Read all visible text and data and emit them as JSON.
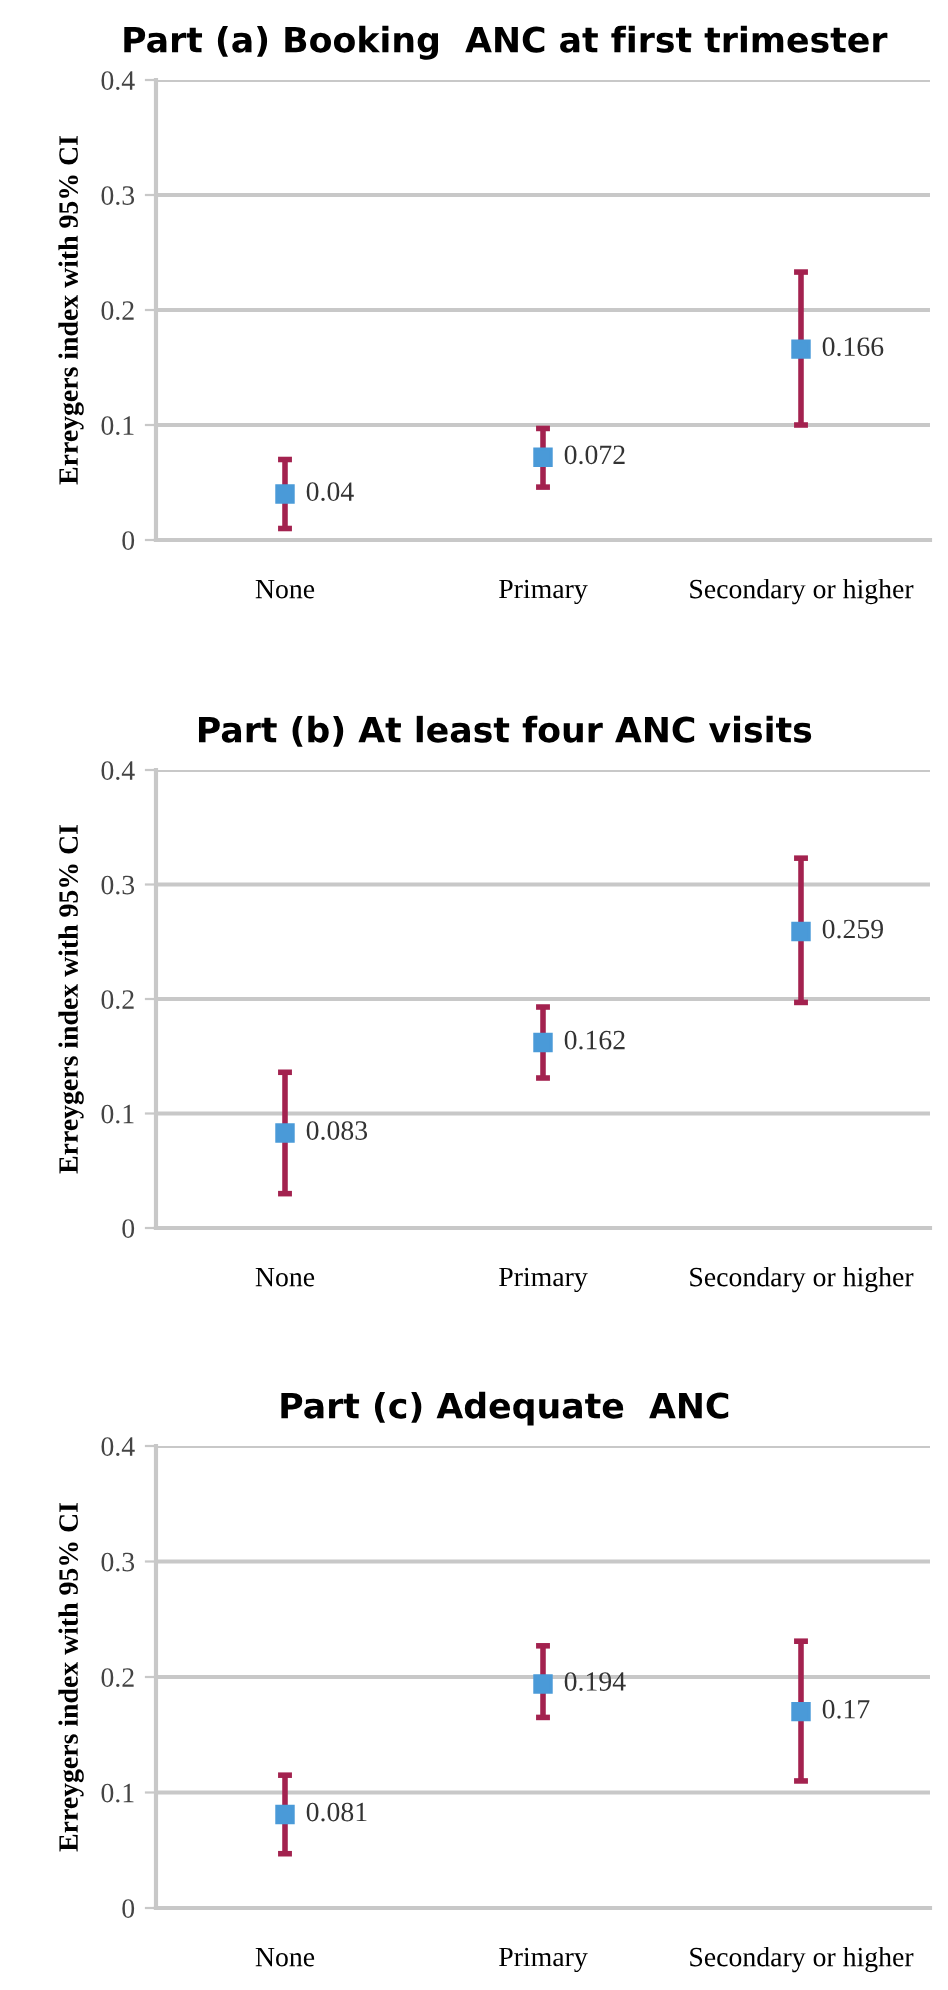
{
  "chart_data": [
    {
      "type": "scatter",
      "title": "Part (a) Booking  ANC at first trimester",
      "ylabel": "Erreygers index with 95% CI",
      "categories": [
        "None",
        "Primary",
        "Secondary or higher"
      ],
      "series": [
        {
          "color": "#4a9ad8",
          "values": [
            0.04,
            0.072,
            0.166
          ],
          "errors": [
            [
              0.01,
              0.07
            ],
            [
              0.046,
              0.097
            ],
            [
              0.1,
              0.233
            ]
          ]
        }
      ],
      "ylim": [
        0,
        0.4
      ],
      "yticks": [
        0,
        0.1,
        0.2,
        0.3,
        0.4
      ],
      "grid": "y",
      "marker": "square",
      "data_labels": true
    },
    {
      "type": "scatter",
      "title": "Part (b) At least four ANC visits",
      "ylabel": "Erreygers index with 95% CI",
      "categories": [
        "None",
        "Primary",
        "Secondary or higher"
      ],
      "series": [
        {
          "color": "#4a9ad8",
          "values": [
            0.083,
            0.162,
            0.259
          ],
          "errors": [
            [
              0.03,
              0.136
            ],
            [
              0.131,
              0.193
            ],
            [
              0.197,
              0.323
            ]
          ]
        }
      ],
      "ylim": [
        0,
        0.4
      ],
      "yticks": [
        0,
        0.1,
        0.2,
        0.3,
        0.4
      ],
      "grid": "y",
      "marker": "square",
      "data_labels": true
    },
    {
      "type": "scatter",
      "title": "Part (c) Adequate  ANC",
      "ylabel": "Erreygers index with 95% CI",
      "categories": [
        "None",
        "Primary",
        "Secondary or higher"
      ],
      "series": [
        {
          "color": "#4a9ad8",
          "values": [
            0.081,
            0.194,
            0.17
          ],
          "errors": [
            [
              0.047,
              0.115
            ],
            [
              0.165,
              0.227
            ],
            [
              0.11,
              0.231
            ]
          ]
        }
      ],
      "ylim": [
        0,
        0.4
      ],
      "yticks": [
        0,
        0.1,
        0.2,
        0.3,
        0.4
      ],
      "grid": "y",
      "marker": "square",
      "data_labels": true
    }
  ]
}
